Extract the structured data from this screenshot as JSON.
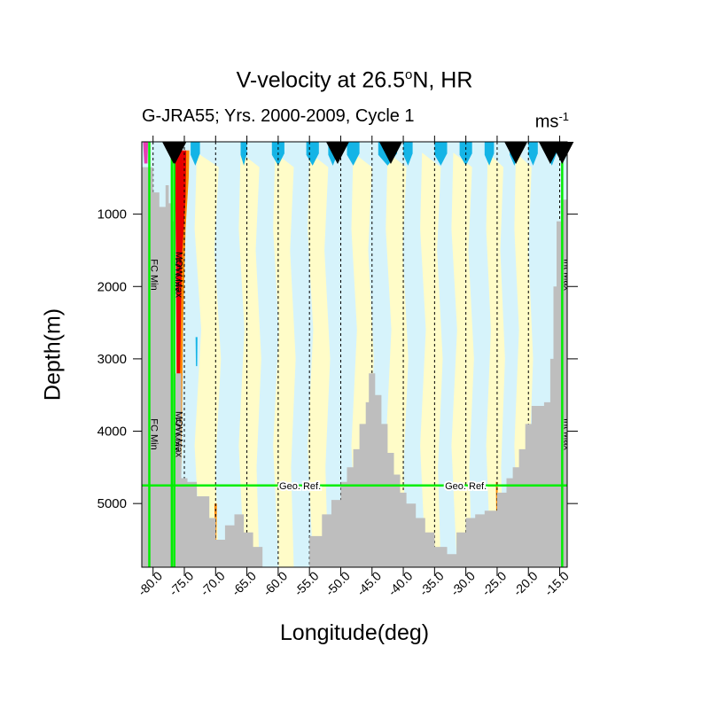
{
  "title_main": "V-velocity at 26.5",
  "title_sup": "o",
  "title_tail": "N, HR",
  "subtitle": "G-JRA55; Yrs. 2000-2009, Cycle 1",
  "units_base": "ms",
  "units_sup": "-1",
  "chart_data": {
    "type": "heatmap",
    "xlabel": "Longitude(deg)",
    "ylabel": "Depth(m)",
    "xlim": [
      -81.8,
      -13.8
    ],
    "ylim": [
      5880,
      0
    ],
    "x_ticks": [
      -80,
      -75,
      -70,
      -65,
      -60,
      -55,
      -50,
      -45,
      -40,
      -35,
      -30,
      -25,
      -20,
      -15
    ],
    "x_tick_labels": [
      "-80.0",
      "-75.0",
      "-70.0",
      "-65.0",
      "-60.0",
      "-55.0",
      "-50.0",
      "-45.0",
      "-40.0",
      "-35.0",
      "-30.0",
      "-25.0",
      "-20.0",
      "-15.0"
    ],
    "y_ticks": [
      1000,
      2000,
      3000,
      4000,
      5000
    ],
    "y_tick_labels": [
      "1000",
      "2000",
      "3000",
      "4000",
      "5000"
    ],
    "mooring_longitudes": [
      -76.7,
      -76.5,
      -50.5,
      -42.0,
      -22.0,
      -16.5,
      -14.6
    ],
    "vertical_lines": [
      {
        "lon": -80.6,
        "label_top": "FC Min",
        "label_bottom": "FC Min"
      },
      {
        "lon": -77.0,
        "label_top": "FC Max",
        "label_bottom": "FC Max"
      },
      {
        "lon": -76.6,
        "label_top": "MOW Max",
        "label_bottom": "MOW Max"
      },
      {
        "lon": -14.6,
        "label_top": "Int Max",
        "label_bottom": "Int Max"
      }
    ],
    "geo_ref": {
      "depth": 4750,
      "labels": [
        "Geo. Ref.",
        "Geo. Ref."
      ],
      "label_lons": [
        -56.5,
        -30.0
      ]
    },
    "bathymetry": [
      [
        -81.8,
        350
      ],
      [
        -80,
        700
      ],
      [
        -79,
        900
      ],
      [
        -78,
        600
      ],
      [
        -77.5,
        850
      ],
      [
        -77,
        1100
      ],
      [
        -76.5,
        3200
      ],
      [
        -75.5,
        4650
      ],
      [
        -74.5,
        4700
      ],
      [
        -73,
        4900
      ],
      [
        -71,
        5200
      ],
      [
        -70,
        5500
      ],
      [
        -68.5,
        5300
      ],
      [
        -67,
        5150
      ],
      [
        -65.5,
        5400
      ],
      [
        -64,
        5600
      ],
      [
        -62.5,
        5880
      ],
      [
        -60,
        5880
      ],
      [
        -57.5,
        5880
      ],
      [
        -56.5,
        5900
      ],
      [
        -55,
        5450
      ],
      [
        -53,
        5150
      ],
      [
        -51.5,
        4950
      ],
      [
        -50,
        4700
      ],
      [
        -49,
        4500
      ],
      [
        -48,
        4250
      ],
      [
        -47,
        3900
      ],
      [
        -46,
        3600
      ],
      [
        -45.5,
        3200
      ],
      [
        -44.5,
        3500
      ],
      [
        -43.5,
        3900
      ],
      [
        -42.5,
        4300
      ],
      [
        -41.5,
        4600
      ],
      [
        -40.5,
        4850
      ],
      [
        -39.5,
        5000
      ],
      [
        -38,
        5200
      ],
      [
        -36.5,
        5400
      ],
      [
        -35,
        5600
      ],
      [
        -33,
        5700
      ],
      [
        -31.5,
        5400
      ],
      [
        -30,
        5200
      ],
      [
        -28.5,
        5150
      ],
      [
        -27,
        5100
      ],
      [
        -25,
        4850
      ],
      [
        -23.5,
        4650
      ],
      [
        -22.5,
        4500
      ],
      [
        -21.5,
        4250
      ],
      [
        -20.5,
        3900
      ],
      [
        -19.5,
        3650
      ],
      [
        -17.5,
        3600
      ],
      [
        -16.5,
        3000
      ],
      [
        -16,
        2000
      ],
      [
        -15.5,
        1100
      ],
      [
        -14.8,
        800
      ],
      [
        -13.8,
        500
      ]
    ],
    "colors": {
      "background": "#d6f3fb",
      "weak_positive": "#fffcc8",
      "negative": "#14b4e6",
      "orange": "#ff8a00",
      "red": "#e60000",
      "magenta": "#e63cb4",
      "bathymetry": "#bebebe",
      "lines": "#00ee00",
      "marker": "#000000"
    }
  }
}
